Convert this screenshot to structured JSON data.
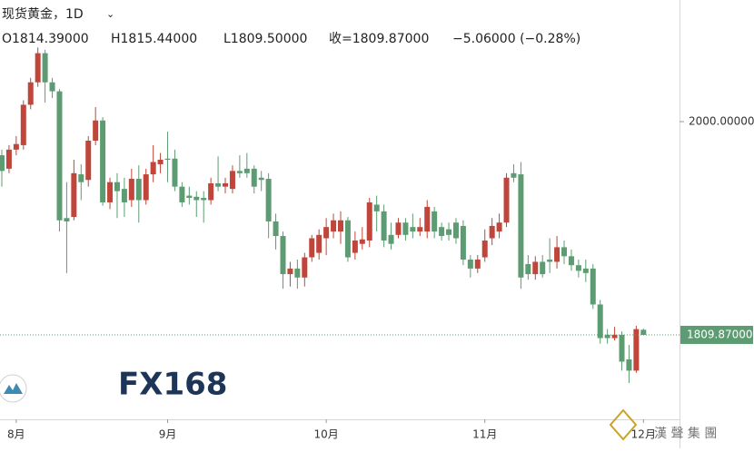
{
  "chart_data": {
    "type": "candlestick",
    "title": "现货黄金，1D",
    "legend_texts": [
      "O1814.39000",
      "H1815.44000",
      "L1809.50000",
      "收=1809.87000",
      "−5.06000 (−0.28%)"
    ],
    "watermark": "FX168",
    "logo_text": "漢 聲 集 團",
    "up_color": "#c0453a",
    "down_color": "#5d9c72",
    "xlim": [
      -0.25,
      94
    ],
    "xticks": [
      {
        "value": 2,
        "label": "8月"
      },
      {
        "value": 23,
        "label": "9月"
      },
      {
        "value": 45,
        "label": "10月"
      },
      {
        "value": 67,
        "label": "11月"
      },
      {
        "value": 89,
        "label": "12月"
      }
    ],
    "ylim": [
      1734.6,
      2108.4
    ],
    "yticks": [
      {
        "value": 2000,
        "label": "2000.00000"
      }
    ],
    "last_price": {
      "value": 1809.87,
      "label": "1809.87000"
    },
    "open": [
      1970,
      1958,
      1975,
      1979,
      2015,
      2035,
      2061,
      2035,
      2027,
      1914,
      1915,
      1953,
      1948,
      1983,
      2001,
      1928,
      1946,
      1940,
      1930,
      1949,
      1930,
      1953,
      1962,
      1967,
      1967,
      1942,
      1934,
      1933,
      1932,
      1930,
      1945,
      1942,
      1940,
      1956,
      1958,
      1958,
      1950,
      1949,
      1911,
      1898,
      1864,
      1869,
      1861,
      1879,
      1883,
      1896,
      1902,
      1902,
      1912,
      1883,
      1891,
      1894,
      1926,
      1920,
      1899,
      1899,
      1910,
      1906,
      1902,
      1902,
      1920,
      1906,
      1904,
      1910,
      1907,
      1877,
      1869,
      1879,
      1896,
      1902,
      1910,
      1954,
      1953,
      1873,
      1864,
      1875,
      1877,
      1875,
      1888,
      1880,
      1872,
      1869,
      1869,
      1837,
      1810,
      1807,
      1810,
      1788,
      1778,
      1814.39
    ],
    "high": [
      1975,
      1979,
      1987,
      2019,
      2039,
      2066,
      2064,
      2039,
      2029,
      1946,
      1966,
      1962,
      1987,
      2013,
      2004,
      1950,
      1954,
      1950,
      1958,
      1961,
      1958,
      1979,
      1972,
      1991,
      1975,
      1946,
      1942,
      1938,
      1938,
      1950,
      1969,
      1950,
      1961,
      1970,
      1972,
      1961,
      1956,
      1954,
      1918,
      1902,
      1875,
      1877,
      1883,
      1899,
      1904,
      1914,
      1918,
      1920,
      1915,
      1902,
      1906,
      1932,
      1934,
      1926,
      1910,
      1914,
      1914,
      1918,
      1914,
      1930,
      1924,
      1910,
      1910,
      1914,
      1912,
      1881,
      1881,
      1904,
      1914,
      1918,
      1954,
      1962,
      1964,
      1881,
      1880,
      1881,
      1896,
      1898,
      1894,
      1886,
      1877,
      1877,
      1873,
      1841,
      1815,
      1817,
      1813,
      1801,
      1818,
      1815.44
    ],
    "low": [
      1942,
      1954,
      1970,
      1975,
      2011,
      2031,
      2017,
      2021,
      1902,
      1865,
      1912,
      1930,
      1942,
      1979,
      1925,
      1922,
      1914,
      1915,
      1924,
      1910,
      1926,
      1946,
      1954,
      1946,
      1938,
      1924,
      1926,
      1915,
      1910,
      1926,
      1938,
      1936,
      1936,
      1950,
      1950,
      1936,
      1938,
      1896,
      1886,
      1851,
      1853,
      1851,
      1853,
      1875,
      1877,
      1881,
      1896,
      1891,
      1875,
      1877,
      1886,
      1888,
      1902,
      1888,
      1886,
      1896,
      1894,
      1896,
      1898,
      1896,
      1896,
      1894,
      1894,
      1891,
      1872,
      1861,
      1865,
      1875,
      1890,
      1896,
      1906,
      1946,
      1851,
      1859,
      1859,
      1861,
      1865,
      1869,
      1873,
      1867,
      1861,
      1857,
      1833,
      1802,
      1802,
      1805,
      1778,
      1767,
      1776,
      1809.5
    ],
    "close": [
      1956,
      1975,
      1980,
      2015,
      2035,
      2061,
      2035,
      2027,
      1912,
      1911,
      1954,
      1946,
      1983,
      2001,
      1928,
      1946,
      1938,
      1928,
      1949,
      1930,
      1953,
      1964,
      1966,
      1966,
      1942,
      1928,
      1932,
      1930,
      1930,
      1945,
      1942,
      1945,
      1956,
      1954,
      1954,
      1942,
      1948,
      1911,
      1898,
      1864,
      1869,
      1861,
      1879,
      1896,
      1899,
      1906,
      1912,
      1912,
      1879,
      1894,
      1895,
      1928,
      1920,
      1894,
      1891,
      1910,
      1899,
      1902,
      1906,
      1924,
      1902,
      1898,
      1899,
      1896,
      1877,
      1869,
      1877,
      1894,
      1907,
      1910,
      1950,
      1950,
      1861,
      1864,
      1875,
      1864,
      1875,
      1888,
      1880,
      1872,
      1867,
      1865,
      1837,
      1807,
      1807,
      1810,
      1786,
      1778,
      1815,
      1809.87
    ]
  }
}
